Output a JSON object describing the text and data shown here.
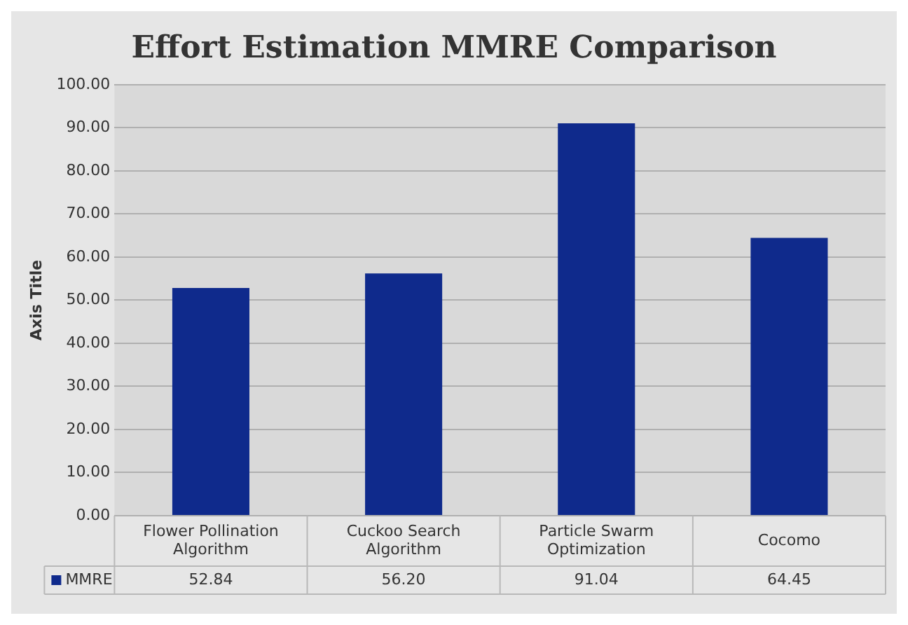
{
  "chart_data": {
    "type": "bar",
    "title": "Effort Estimation MMRE Comparison",
    "ylabel": "Axis Title",
    "categories": [
      "Flower Pollination Algorithm",
      "Cuckoo Search Algorithm",
      "Particle Swarm Optimization",
      "Cocomo"
    ],
    "series": [
      {
        "name": "MMRE",
        "color": "#0f2a8c",
        "values": [
          52.84,
          56.2,
          91.04,
          64.45
        ]
      }
    ],
    "value_labels": [
      "52.84",
      "56.20",
      "91.04",
      "64.45"
    ],
    "ylim": [
      0,
      100
    ],
    "yticks": [
      {
        "value": 0,
        "label": "0.00"
      },
      {
        "value": 10,
        "label": "10.00"
      },
      {
        "value": 20,
        "label": "20.00"
      },
      {
        "value": 30,
        "label": "30.00"
      },
      {
        "value": 40,
        "label": "40.00"
      },
      {
        "value": 50,
        "label": "50.00"
      },
      {
        "value": 60,
        "label": "60.00"
      },
      {
        "value": 70,
        "label": "70.00"
      },
      {
        "value": 80,
        "label": "80.00"
      },
      {
        "value": 90,
        "label": "90.00"
      },
      {
        "value": 100,
        "label": "100.00"
      }
    ],
    "grid": "y",
    "legend": "bottom"
  }
}
